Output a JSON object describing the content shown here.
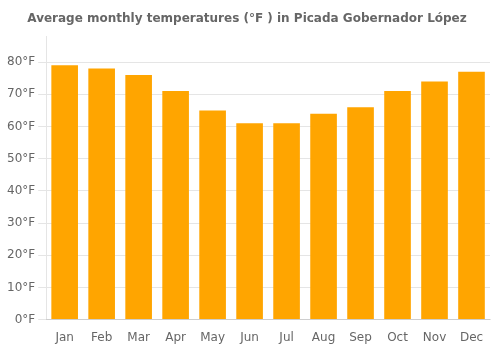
{
  "chart_data": {
    "type": "bar",
    "title": "Average monthly temperatures (°F ) in Picada Gobernador López",
    "categories": [
      "Jan",
      "Feb",
      "Mar",
      "Apr",
      "May",
      "Jun",
      "Jul",
      "Aug",
      "Sep",
      "Oct",
      "Nov",
      "Dec"
    ],
    "values": [
      79,
      78,
      76,
      71,
      65,
      61,
      61,
      64,
      66,
      71,
      74,
      77
    ],
    "color": "#FFA500",
    "ylim": [
      0,
      88
    ],
    "yticks": [
      {
        "value": 0,
        "label": "0°F"
      },
      {
        "value": 10,
        "label": "10°F"
      },
      {
        "value": 20,
        "label": "20°F"
      },
      {
        "value": 30,
        "label": "30°F"
      },
      {
        "value": 40,
        "label": "40°F"
      },
      {
        "value": 50,
        "label": "50°F"
      },
      {
        "value": 60,
        "label": "60°F"
      },
      {
        "value": 70,
        "label": "70°F"
      },
      {
        "value": 80,
        "label": "80°F"
      }
    ],
    "grid": true
  }
}
